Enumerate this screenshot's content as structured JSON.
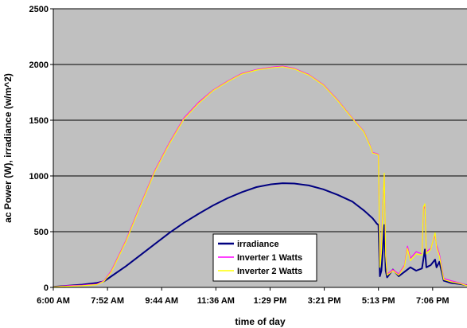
{
  "chart_data": {
    "type": "line",
    "title": "",
    "xlabel": "time of day",
    "ylabel": "ac Power (W), irradiance (w/m^2)",
    "ylim": [
      0,
      2500
    ],
    "yticks": [
      "0",
      "500",
      "1000",
      "1500",
      "2000",
      "2500"
    ],
    "xticks": [
      "6:00 AM",
      "7:52 AM",
      "9:44 AM",
      "11:36 AM",
      "1:29 PM",
      "3:21 PM",
      "5:13 PM",
      "7:06 PM"
    ],
    "xlim_hours": [
      6.0,
      20.25
    ],
    "grid": "horizontal",
    "plot_background": "#c0c0c0",
    "legend_position": "bottom-center",
    "series": [
      {
        "name": "irradiance",
        "color": "#000080",
        "points": [
          [
            6.0,
            5
          ],
          [
            6.5,
            15
          ],
          [
            7.0,
            25
          ],
          [
            7.5,
            40
          ],
          [
            7.75,
            55
          ],
          [
            8.0,
            100
          ],
          [
            8.5,
            190
          ],
          [
            9.0,
            290
          ],
          [
            9.5,
            390
          ],
          [
            10.0,
            490
          ],
          [
            10.5,
            580
          ],
          [
            11.0,
            660
          ],
          [
            11.5,
            735
          ],
          [
            12.0,
            800
          ],
          [
            12.5,
            855
          ],
          [
            13.0,
            900
          ],
          [
            13.5,
            925
          ],
          [
            13.9,
            935
          ],
          [
            14.3,
            932
          ],
          [
            14.8,
            915
          ],
          [
            15.3,
            880
          ],
          [
            15.8,
            830
          ],
          [
            16.3,
            770
          ],
          [
            16.7,
            690
          ],
          [
            17.0,
            620
          ],
          [
            17.15,
            570
          ],
          [
            17.2,
            560
          ],
          [
            17.25,
            100
          ],
          [
            17.3,
            150
          ],
          [
            17.35,
            330
          ],
          [
            17.4,
            560
          ],
          [
            17.45,
            150
          ],
          [
            17.5,
            90
          ],
          [
            17.7,
            160
          ],
          [
            17.9,
            100
          ],
          [
            18.1,
            140
          ],
          [
            18.3,
            180
          ],
          [
            18.5,
            150
          ],
          [
            18.7,
            170
          ],
          [
            18.8,
            340
          ],
          [
            18.85,
            180
          ],
          [
            19.0,
            200
          ],
          [
            19.15,
            250
          ],
          [
            19.2,
            180
          ],
          [
            19.3,
            230
          ],
          [
            19.45,
            60
          ],
          [
            19.7,
            40
          ],
          [
            20.0,
            30
          ],
          [
            20.25,
            20
          ]
        ]
      },
      {
        "name": "Inverter 1 Watts",
        "color": "#ff00ff",
        "points": [
          [
            6.0,
            5
          ],
          [
            6.5,
            15
          ],
          [
            7.0,
            20
          ],
          [
            7.5,
            30
          ],
          [
            7.75,
            60
          ],
          [
            8.0,
            150
          ],
          [
            8.5,
            420
          ],
          [
            9.0,
            740
          ],
          [
            9.5,
            1050
          ],
          [
            10.0,
            1300
          ],
          [
            10.5,
            1520
          ],
          [
            11.0,
            1660
          ],
          [
            11.5,
            1770
          ],
          [
            12.0,
            1850
          ],
          [
            12.5,
            1920
          ],
          [
            13.0,
            1955
          ],
          [
            13.5,
            1975
          ],
          [
            13.9,
            1985
          ],
          [
            14.3,
            1965
          ],
          [
            14.8,
            1910
          ],
          [
            15.3,
            1820
          ],
          [
            15.8,
            1680
          ],
          [
            16.3,
            1520
          ],
          [
            16.7,
            1400
          ],
          [
            16.9,
            1280
          ],
          [
            17.0,
            1210
          ],
          [
            17.15,
            1200
          ],
          [
            17.2,
            1190
          ],
          [
            17.25,
            200
          ],
          [
            17.3,
            350
          ],
          [
            17.35,
            750
          ],
          [
            17.4,
            1010
          ],
          [
            17.45,
            300
          ],
          [
            17.5,
            120
          ],
          [
            17.7,
            160
          ],
          [
            17.9,
            120
          ],
          [
            18.1,
            200
          ],
          [
            18.2,
            370
          ],
          [
            18.3,
            260
          ],
          [
            18.5,
            320
          ],
          [
            18.7,
            300
          ],
          [
            18.75,
            700
          ],
          [
            18.8,
            740
          ],
          [
            18.85,
            320
          ],
          [
            19.0,
            350
          ],
          [
            19.15,
            470
          ],
          [
            19.2,
            380
          ],
          [
            19.3,
            300
          ],
          [
            19.45,
            80
          ],
          [
            19.7,
            60
          ],
          [
            20.0,
            40
          ],
          [
            20.25,
            20
          ]
        ]
      },
      {
        "name": "Inverter 2 Watts",
        "color": "#ffff00",
        "points": [
          [
            6.0,
            5
          ],
          [
            6.5,
            10
          ],
          [
            7.0,
            15
          ],
          [
            7.5,
            25
          ],
          [
            7.75,
            55
          ],
          [
            8.0,
            140
          ],
          [
            8.5,
            410
          ],
          [
            9.0,
            730
          ],
          [
            9.5,
            1040
          ],
          [
            10.0,
            1290
          ],
          [
            10.5,
            1510
          ],
          [
            11.0,
            1650
          ],
          [
            11.5,
            1765
          ],
          [
            12.0,
            1845
          ],
          [
            12.5,
            1915
          ],
          [
            13.0,
            1950
          ],
          [
            13.5,
            1970
          ],
          [
            13.9,
            1980
          ],
          [
            14.3,
            1960
          ],
          [
            14.8,
            1905
          ],
          [
            15.3,
            1815
          ],
          [
            15.8,
            1675
          ],
          [
            16.3,
            1515
          ],
          [
            16.7,
            1395
          ],
          [
            16.9,
            1275
          ],
          [
            17.0,
            1205
          ],
          [
            17.15,
            1195
          ],
          [
            17.2,
            1185
          ],
          [
            17.25,
            180
          ],
          [
            17.3,
            330
          ],
          [
            17.35,
            730
          ],
          [
            17.4,
            1025
          ],
          [
            17.45,
            280
          ],
          [
            17.5,
            110
          ],
          [
            17.7,
            150
          ],
          [
            17.9,
            110
          ],
          [
            18.1,
            190
          ],
          [
            18.2,
            350
          ],
          [
            18.3,
            240
          ],
          [
            18.5,
            300
          ],
          [
            18.7,
            290
          ],
          [
            18.75,
            720
          ],
          [
            18.8,
            750
          ],
          [
            18.85,
            300
          ],
          [
            19.0,
            340
          ],
          [
            19.15,
            490
          ],
          [
            19.2,
            360
          ],
          [
            19.3,
            280
          ],
          [
            19.45,
            70
          ],
          [
            19.7,
            50
          ],
          [
            20.0,
            35
          ],
          [
            20.25,
            15
          ]
        ]
      }
    ]
  }
}
